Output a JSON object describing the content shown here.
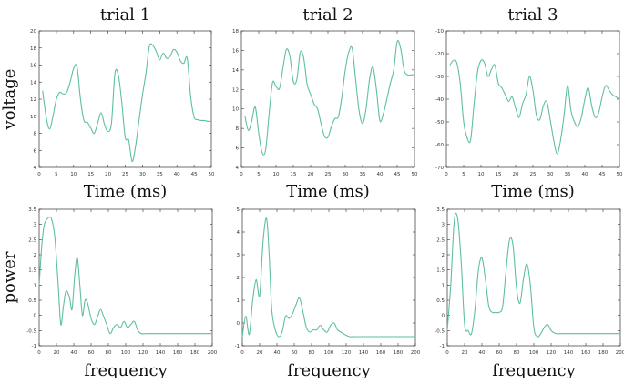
{
  "line_color": "#5fbfa3",
  "axis_color": "#333333",
  "chart_data": [
    {
      "type": "line",
      "title": "trial 1",
      "xlabel": "Time (ms)",
      "ylabel": "voltage",
      "xlim": [
        0,
        50
      ],
      "ylim": [
        4,
        20
      ],
      "xticks": [
        0,
        5,
        10,
        15,
        20,
        25,
        30,
        35,
        40,
        45,
        50
      ],
      "yticks": [
        4,
        6,
        8,
        10,
        12,
        14,
        16,
        18,
        20
      ],
      "series": [
        {
          "x": [
            1,
            2,
            3,
            4,
            5,
            6,
            7,
            8,
            9,
            10,
            11,
            12,
            13,
            14,
            15,
            16,
            17,
            18,
            19,
            20,
            21,
            22,
            23,
            24,
            25,
            26,
            27,
            28,
            29,
            30,
            31,
            32,
            33,
            34,
            35,
            36,
            37,
            38,
            39,
            40,
            41,
            42,
            43,
            44,
            45,
            46,
            47,
            48,
            49,
            50
          ],
          "y": [
            13,
            10,
            8.5,
            10,
            12,
            12.8,
            12.6,
            12.8,
            14,
            15.6,
            15.8,
            12,
            9.5,
            9.3,
            8.6,
            8,
            9.2,
            10.4,
            9,
            8.2,
            9.2,
            15,
            14.8,
            11.6,
            7.5,
            7.2,
            4.7,
            6.5,
            9.5,
            12.5,
            15,
            18.2,
            18.3,
            17.6,
            16.6,
            17.4,
            16.8,
            17,
            17.8,
            17.5,
            16.5,
            16.2,
            16.8,
            12.3,
            9.9,
            9.6,
            9.5,
            9.5,
            9.4,
            9.4
          ]
        }
      ]
    },
    {
      "type": "line",
      "title": "trial 2",
      "xlabel": "Time (ms)",
      "ylabel": "",
      "xlim": [
        0,
        50
      ],
      "ylim": [
        4,
        18
      ],
      "xticks": [
        0,
        5,
        10,
        15,
        20,
        25,
        30,
        35,
        40,
        45,
        50
      ],
      "yticks": [
        4,
        6,
        8,
        10,
        12,
        14,
        16,
        18
      ],
      "series": [
        {
          "x": [
            1,
            2,
            3,
            4,
            5,
            6,
            7,
            8,
            9,
            10,
            11,
            12,
            13,
            14,
            15,
            16,
            17,
            18,
            19,
            20,
            21,
            22,
            23,
            24,
            25,
            26,
            27,
            28,
            29,
            30,
            31,
            32,
            33,
            34,
            35,
            36,
            37,
            38,
            39,
            40,
            41,
            42,
            43,
            44,
            45,
            46,
            47,
            48,
            49,
            50
          ],
          "y": [
            9.3,
            7.8,
            8.8,
            10.2,
            7.5,
            5.5,
            5.8,
            9.5,
            12.7,
            12.3,
            12.1,
            14.2,
            16.1,
            15.4,
            12.8,
            13,
            15.8,
            15.2,
            12.5,
            11.5,
            10.5,
            10,
            8.5,
            7.2,
            7.1,
            8.2,
            9,
            9.2,
            11.2,
            14,
            15.8,
            16.2,
            13,
            9.8,
            8.5,
            10,
            13,
            14.3,
            12,
            8.8,
            9.5,
            11,
            12.6,
            14,
            16.9,
            16.2,
            14,
            13.5,
            13.5,
            13.5
          ]
        }
      ]
    },
    {
      "type": "line",
      "title": "trial 3",
      "xlabel": "Time (ms)",
      "ylabel": "",
      "xlim": [
        0,
        50
      ],
      "ylim": [
        -70,
        -10
      ],
      "xticks": [
        0,
        5,
        10,
        15,
        20,
        25,
        30,
        35,
        40,
        45,
        50
      ],
      "yticks": [
        -70,
        -60,
        -50,
        -40,
        -30,
        -20,
        -10
      ],
      "series": [
        {
          "x": [
            1,
            2,
            3,
            4,
            5,
            6,
            7,
            8,
            9,
            10,
            11,
            12,
            13,
            14,
            15,
            16,
            17,
            18,
            19,
            20,
            21,
            22,
            23,
            24,
            25,
            26,
            27,
            28,
            29,
            30,
            31,
            32,
            33,
            34,
            35,
            36,
            37,
            38,
            39,
            40,
            41,
            42,
            43,
            44,
            45,
            46,
            47,
            48,
            49,
            50
          ],
          "y": [
            -25,
            -23,
            -24,
            -33,
            -50,
            -57,
            -58,
            -42,
            -28,
            -23,
            -24,
            -30,
            -27,
            -25,
            -33,
            -35,
            -38,
            -41,
            -39,
            -44,
            -48,
            -42,
            -38,
            -30,
            -36,
            -47,
            -49,
            -43,
            -41,
            -49,
            -58,
            -64,
            -58,
            -47,
            -34,
            -45,
            -50,
            -52,
            -48,
            -40,
            -35,
            -43,
            -48,
            -46,
            -39,
            -34,
            -36,
            -38,
            -39,
            -40
          ]
        }
      ]
    },
    {
      "type": "line",
      "title": "",
      "xlabel": "frequency",
      "ylabel": "power",
      "xlim": [
        0,
        200
      ],
      "ylim": [
        -1,
        3.5
      ],
      "xticks": [
        0,
        20,
        40,
        60,
        80,
        100,
        120,
        140,
        160,
        180,
        200
      ],
      "yticks": [
        -1,
        -0.5,
        0,
        0.5,
        1,
        1.5,
        2,
        2.5,
        3,
        3.5
      ],
      "series": [
        {
          "x": [
            0,
            3,
            6,
            10,
            14,
            18,
            22,
            25,
            28,
            31,
            35,
            38,
            41,
            44,
            47,
            50,
            53,
            56,
            60,
            64,
            68,
            71,
            74,
            78,
            82,
            86,
            90,
            94,
            98,
            102,
            106,
            110,
            114,
            118,
            124,
            130,
            140,
            150,
            160,
            170,
            180,
            190,
            200
          ],
          "y": [
            1.0,
            2.3,
            3.0,
            3.2,
            3.2,
            2.6,
            1.0,
            -0.3,
            0.3,
            0.8,
            0.6,
            0.2,
            1.3,
            1.9,
            1.0,
            0.0,
            0.5,
            0.4,
            -0.1,
            -0.3,
            0.0,
            0.2,
            0.0,
            -0.3,
            -0.6,
            -0.4,
            -0.3,
            -0.4,
            -0.2,
            -0.4,
            -0.3,
            -0.2,
            -0.5,
            -0.6,
            -0.6,
            -0.6,
            -0.6,
            -0.6,
            -0.6,
            -0.6,
            -0.6,
            -0.6,
            -0.6
          ]
        }
      ]
    },
    {
      "type": "line",
      "title": "",
      "xlabel": "frequency",
      "ylabel": "",
      "xlim": [
        0,
        200
      ],
      "ylim": [
        -1,
        5
      ],
      "xticks": [
        0,
        20,
        40,
        60,
        80,
        100,
        120,
        140,
        160,
        180,
        200
      ],
      "yticks": [
        -1,
        0,
        1,
        2,
        3,
        4,
        5
      ],
      "series": [
        {
          "x": [
            0,
            4,
            8,
            12,
            16,
            20,
            24,
            28,
            31,
            34,
            38,
            42,
            46,
            50,
            54,
            58,
            62,
            66,
            70,
            74,
            78,
            82,
            86,
            90,
            94,
            98,
            102,
            106,
            110,
            114,
            118,
            124,
            130,
            140,
            150,
            160,
            170,
            180,
            190,
            200
          ],
          "y": [
            -0.6,
            0.3,
            -0.5,
            1.0,
            1.9,
            1.2,
            3.6,
            4.6,
            3.0,
            0.6,
            -0.3,
            -0.6,
            -0.4,
            0.3,
            0.2,
            0.4,
            0.8,
            1.1,
            0.5,
            -0.2,
            -0.4,
            -0.3,
            -0.3,
            -0.1,
            -0.3,
            -0.4,
            -0.1,
            0.0,
            -0.3,
            -0.4,
            -0.5,
            -0.6,
            -0.6,
            -0.6,
            -0.6,
            -0.6,
            -0.6,
            -0.6,
            -0.6,
            -0.6
          ]
        }
      ]
    },
    {
      "type": "line",
      "title": "",
      "xlabel": "frequency",
      "ylabel": "",
      "xlim": [
        0,
        200
      ],
      "ylim": [
        -1,
        3.5
      ],
      "xticks": [
        0,
        20,
        40,
        60,
        80,
        100,
        120,
        140,
        160,
        180,
        200
      ],
      "yticks": [
        -1,
        -0.5,
        0,
        0.5,
        1,
        1.5,
        2,
        2.5,
        3,
        3.5
      ],
      "series": [
        {
          "x": [
            0,
            4,
            8,
            12,
            16,
            20,
            24,
            28,
            32,
            36,
            40,
            44,
            48,
            52,
            56,
            60,
            64,
            68,
            72,
            76,
            80,
            84,
            88,
            92,
            96,
            100,
            104,
            108,
            112,
            116,
            120,
            126,
            132,
            140,
            150,
            160,
            170,
            180,
            190,
            200
          ],
          "y": [
            -0.5,
            1.0,
            3.1,
            3.2,
            1.8,
            -0.3,
            -0.5,
            -0.6,
            0.2,
            1.5,
            1.9,
            1.2,
            0.3,
            0.1,
            0.1,
            0.1,
            0.3,
            1.5,
            2.5,
            2.3,
            0.9,
            0.4,
            1.2,
            1.7,
            1.0,
            -0.4,
            -0.7,
            -0.6,
            -0.4,
            -0.3,
            -0.5,
            -0.6,
            -0.6,
            -0.6,
            -0.6,
            -0.6,
            -0.6,
            -0.6,
            -0.6,
            -0.6
          ]
        }
      ]
    }
  ]
}
